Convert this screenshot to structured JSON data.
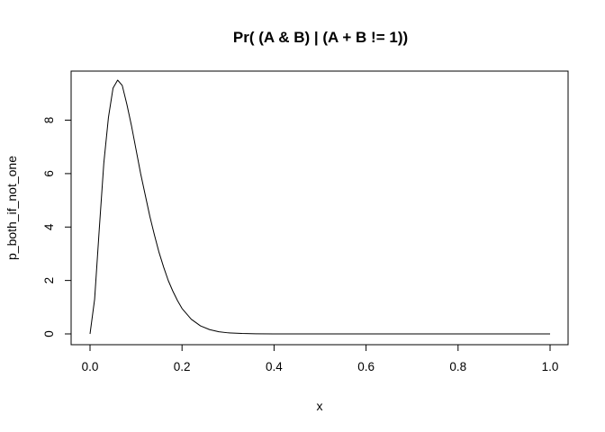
{
  "chart_data": {
    "type": "line",
    "title": "Pr( (A & B) | (A + B != 1))",
    "xlabel": "x",
    "ylabel": "p_both_if_not_one",
    "xlim": [
      0,
      1
    ],
    "ylim": [
      0,
      9.5
    ],
    "x_ticks": [
      "0.0",
      "0.2",
      "0.4",
      "0.6",
      "0.8",
      "1.0"
    ],
    "y_ticks": [
      "0",
      "2",
      "4",
      "6",
      "8"
    ],
    "grid": false,
    "series": [
      {
        "color": "#000000",
        "x": [
          0.0,
          0.01,
          0.02,
          0.03,
          0.04,
          0.05,
          0.06,
          0.07,
          0.08,
          0.09,
          0.1,
          0.11,
          0.12,
          0.13,
          0.14,
          0.15,
          0.16,
          0.17,
          0.18,
          0.19,
          0.2,
          0.22,
          0.24,
          0.26,
          0.28,
          0.3,
          0.33,
          0.36,
          0.4,
          0.45,
          0.5,
          0.6,
          0.7,
          0.8,
          0.9,
          1.0
        ],
        "y": [
          0.0,
          1.3,
          3.9,
          6.4,
          8.1,
          9.2,
          9.5,
          9.3,
          8.6,
          7.8,
          6.9,
          6.0,
          5.2,
          4.4,
          3.7,
          3.05,
          2.5,
          2.0,
          1.6,
          1.25,
          0.95,
          0.55,
          0.3,
          0.16,
          0.08,
          0.04,
          0.015,
          0.006,
          0.002,
          0.0005,
          0.0001,
          0.0,
          0.0,
          0.0,
          0.0,
          0.0
        ]
      }
    ]
  }
}
